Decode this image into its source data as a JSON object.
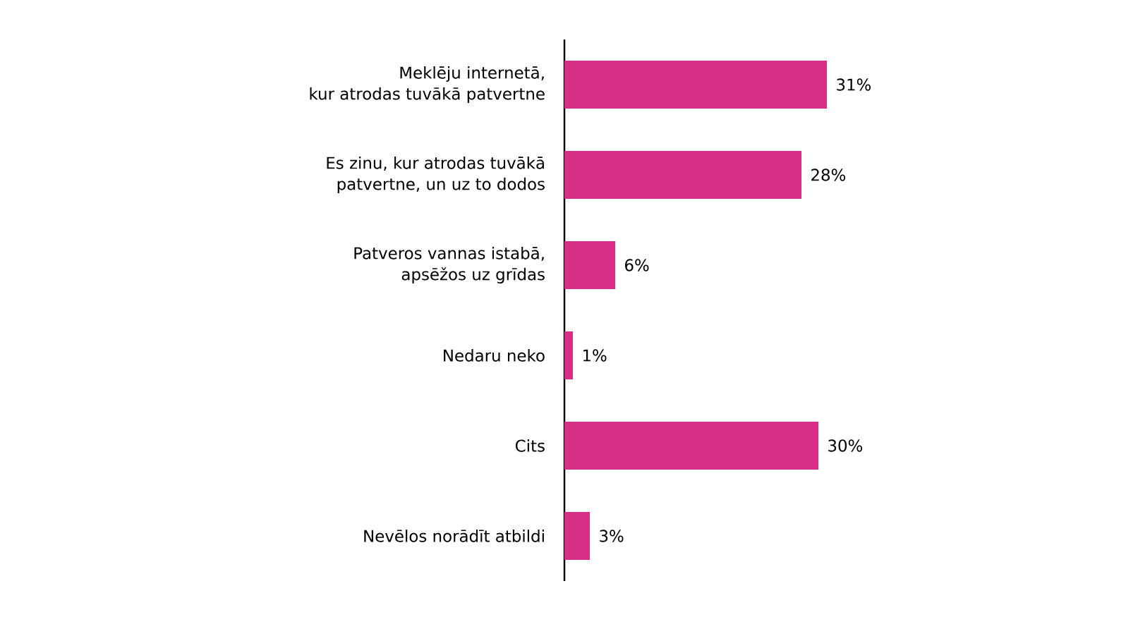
{
  "chart_data": {
    "type": "bar",
    "orientation": "horizontal",
    "categories": [
      "Meklēju internetā,\nkur atrodas tuvākā patvertne",
      "Es zinu, kur atrodas tuvākā\npatvertne, un uz to dodos",
      "Patveros vannas istabā,\napsēžos uz grīdas",
      "Nedaru neko",
      "Cits",
      "Nevēlos norādīt atbildi"
    ],
    "values": [
      31,
      28,
      6,
      1,
      30,
      3
    ],
    "value_labels": [
      "31%",
      "28%",
      "6%",
      "1%",
      "30%",
      "3%"
    ],
    "color": "#d62e85"
  }
}
